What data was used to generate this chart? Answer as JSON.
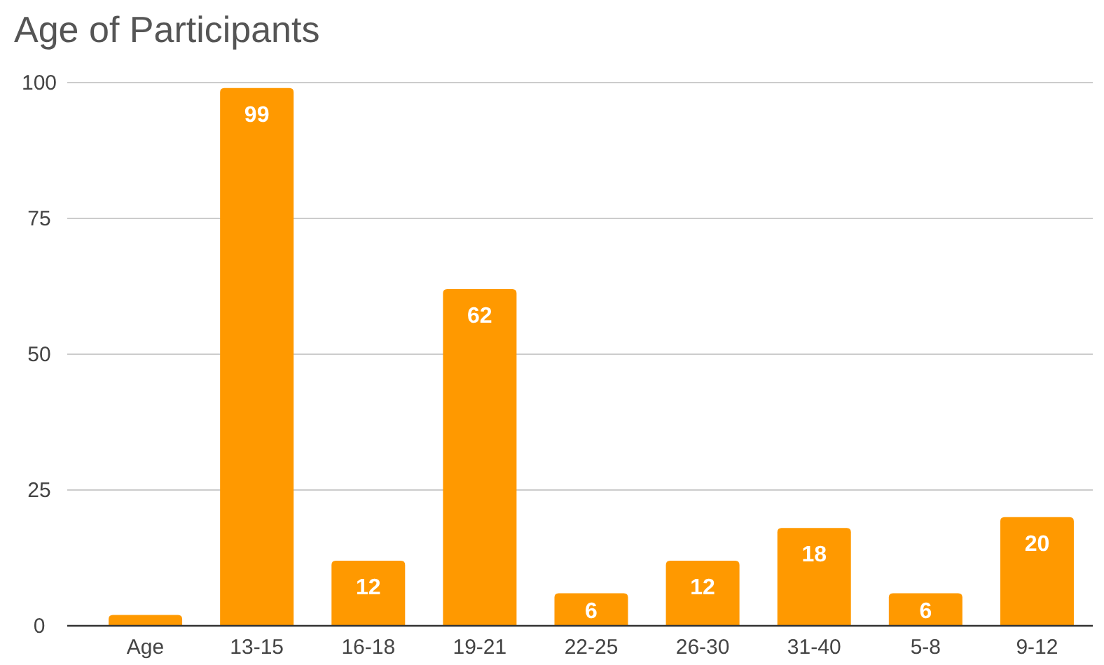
{
  "chart_data": {
    "type": "bar",
    "title": "Age of Participants",
    "categories": [
      "Age",
      "13-15",
      "16-18",
      "19-21",
      "22-25",
      "26-30",
      "31-40",
      "5-8",
      "9-12"
    ],
    "values": [
      2,
      99,
      12,
      62,
      6,
      12,
      18,
      6,
      20
    ],
    "value_labels": [
      null,
      "99",
      "12",
      "62",
      "6",
      "12",
      "18",
      "6",
      "20"
    ],
    "color": "#ff9900",
    "ylim": [
      0,
      100
    ],
    "yticks": [
      0,
      25,
      50,
      75,
      100
    ],
    "grid": "y"
  }
}
